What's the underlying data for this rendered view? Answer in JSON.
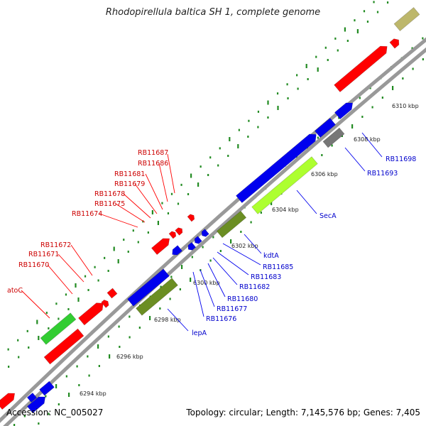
{
  "title": "Rhodopirellula baltica SH 1, complete genome",
  "accession": "Accession: NC_005027",
  "summary": "Topology: circular; Length: 7,145,576 bp; Genes: 7,405",
  "colors": {
    "red": "#ff0000",
    "blue": "#0000ee",
    "olive": "#6b8e23",
    "lime": "#adff2f",
    "green": "#32cd32",
    "gray": "#777777",
    "khaki": "#bdb76b",
    "backbone": "#999999",
    "tick": "#228b22"
  },
  "kbp_ticks": [
    "6294 kbp",
    "6296 kbp",
    "6298 kbp",
    "6300 kbp",
    "6302 kbp",
    "6304 kbp",
    "6306 kbp",
    "6308 kbp",
    "6310 kbp"
  ],
  "labels_red": [
    "RB11687",
    "RB11686",
    "RB11681",
    "RB11679",
    "RB11678",
    "RB11675",
    "RB11674",
    "RB11672",
    "RB11671",
    "RB11670",
    "atoC"
  ],
  "labels_blue": [
    "RB11698",
    "RB11693",
    "SecA",
    "kdtA",
    "RB11685",
    "RB11683",
    "RB11682",
    "RB11680",
    "RB11677",
    "RB11676",
    "lepA"
  ]
}
